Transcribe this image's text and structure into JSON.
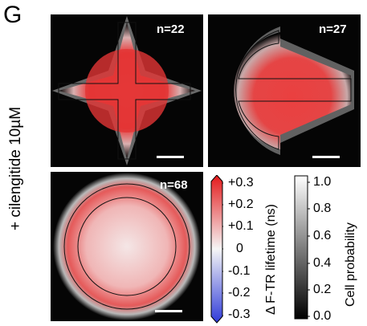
{
  "panel_letter": "G",
  "condition_label": "+ cilengitide 10µM",
  "panels": [
    {
      "shape": "cross",
      "n_label": "n=22"
    },
    {
      "shape": "arrow",
      "n_label": "n=27"
    },
    {
      "shape": "disc",
      "n_label": "n=68"
    }
  ],
  "lifetime_colorbar": {
    "title": "Δ F-TR lifetime (ns)",
    "ticks": [
      "+0.3",
      "+0.2",
      "+0.1",
      "0",
      "-0.1",
      "-0.2",
      "-0.3"
    ],
    "colors": {
      "high": "#e3191b",
      "mid": "#f5f5f5",
      "low": "#2f3bd9"
    }
  },
  "probability_colorbar": {
    "title": "Cell probability",
    "ticks": [
      "1.0",
      "0.8",
      "0.6",
      "0.4",
      "0.2",
      "0.0"
    ],
    "colors": {
      "high": "#ffffff",
      "low": "#000000"
    }
  }
}
